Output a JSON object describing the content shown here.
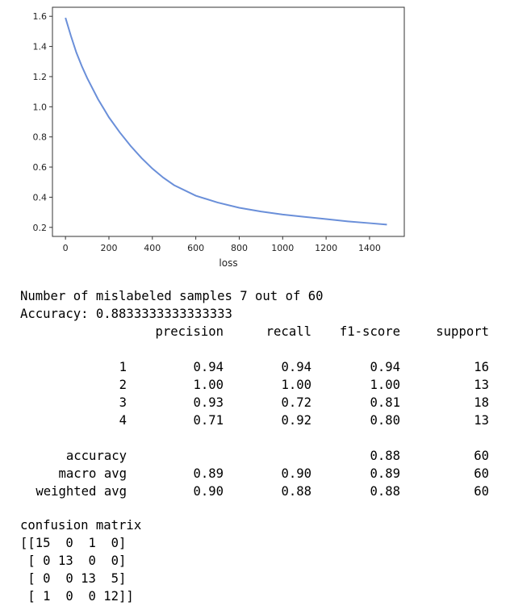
{
  "chart_data": {
    "type": "line",
    "xlabel": "loss",
    "ylabel": "",
    "xlim": [
      -60,
      1560
    ],
    "ylim": [
      0.14,
      1.66
    ],
    "xticks": [
      "0",
      "200",
      "400",
      "600",
      "800",
      "1000",
      "1200",
      "1400"
    ],
    "yticks": [
      "0.2",
      "0.4",
      "0.6",
      "0.8",
      "1.0",
      "1.2",
      "1.4",
      "1.6"
    ],
    "grid": false,
    "line_color": "#6a8fd9",
    "series": [
      {
        "x": [
          0,
          25,
          50,
          75,
          100,
          150,
          200,
          250,
          300,
          350,
          400,
          450,
          500,
          600,
          700,
          800,
          900,
          1000,
          1100,
          1200,
          1300,
          1400,
          1480
        ],
        "y": [
          1.59,
          1.47,
          1.36,
          1.27,
          1.19,
          1.05,
          0.93,
          0.83,
          0.74,
          0.66,
          0.59,
          0.53,
          0.48,
          0.41,
          0.365,
          0.33,
          0.305,
          0.285,
          0.27,
          0.255,
          0.24,
          0.228,
          0.218
        ]
      }
    ]
  },
  "output": {
    "mislabeled_line": "Number of mislabeled samples 7 out of 60",
    "accuracy_line": "Accuracy: 0.8833333333333333",
    "report": {
      "headers": [
        "precision",
        "recall",
        "f1-score",
        "support"
      ],
      "rows": [
        {
          "label": "1",
          "precision": "0.94",
          "recall": "0.94",
          "f1": "0.94",
          "support": "16"
        },
        {
          "label": "2",
          "precision": "1.00",
          "recall": "1.00",
          "f1": "1.00",
          "support": "13"
        },
        {
          "label": "3",
          "precision": "0.93",
          "recall": "0.72",
          "f1": "0.81",
          "support": "18"
        },
        {
          "label": "4",
          "precision": "0.71",
          "recall": "0.92",
          "f1": "0.80",
          "support": "13"
        }
      ],
      "summary": [
        {
          "label": "accuracy",
          "precision": "",
          "recall": "",
          "f1": "0.88",
          "support": "60"
        },
        {
          "label": "macro avg",
          "precision": "0.89",
          "recall": "0.90",
          "f1": "0.89",
          "support": "60"
        },
        {
          "label": "weighted avg",
          "precision": "0.90",
          "recall": "0.88",
          "f1": "0.88",
          "support": "60"
        }
      ]
    },
    "confusion_title": "confusion matrix",
    "confusion_lines": [
      "[[15  0  1  0]",
      " [ 0 13  0  0]",
      " [ 0  0 13  5]",
      " [ 1  0  0 12]]"
    ]
  }
}
